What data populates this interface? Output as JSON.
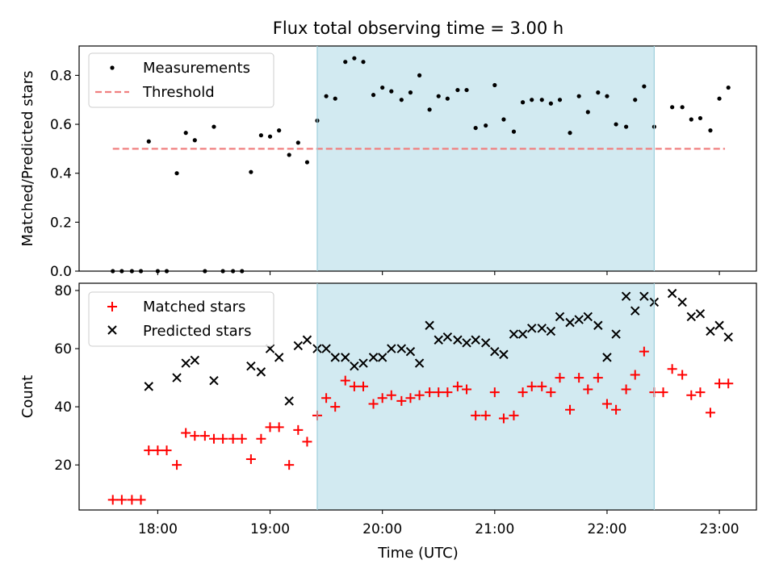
{
  "figure": {
    "title": "Flux total observing time = 3.00 h",
    "xlabel": "Time (UTC)",
    "x_tick_labels": [
      "18:00",
      "19:00",
      "20:00",
      "21:00",
      "22:00",
      "23:00"
    ],
    "x_ticks_hours": [
      18,
      19,
      20,
      21,
      22,
      23
    ],
    "xlim_hours": [
      17.3,
      23.33
    ],
    "observing_window_hours": [
      19.42,
      22.42
    ],
    "window_color": "#add8e6"
  },
  "chart_data": [
    {
      "type": "scatter",
      "ylabel": "Matched/Predicted stars",
      "ylim": [
        0,
        0.92
      ],
      "y_tick_labels": [
        "0.0",
        "0.2",
        "0.4",
        "0.6",
        "0.8"
      ],
      "y_ticks": [
        0,
        0.2,
        0.4,
        0.6,
        0.8
      ],
      "legend_position": "upper-left",
      "threshold": {
        "name": "Threshold",
        "value": 0.5,
        "x_range": [
          17.6,
          23.05
        ],
        "color": "#f08080"
      },
      "series": [
        {
          "name": "Measurements",
          "color": "#000000",
          "marker": "dot",
          "x": [
            17.6,
            17.68,
            17.77,
            17.85,
            17.92,
            18.0,
            18.08,
            18.17,
            18.25,
            18.33,
            18.42,
            18.5,
            18.58,
            18.67,
            18.75,
            18.83,
            18.92,
            19.0,
            19.08,
            19.17,
            19.25,
            19.33,
            19.42,
            19.5,
            19.58,
            19.67,
            19.75,
            19.83,
            19.92,
            20.0,
            20.08,
            20.17,
            20.25,
            20.33,
            20.42,
            20.5,
            20.58,
            20.67,
            20.75,
            20.83,
            20.92,
            21.0,
            21.08,
            21.17,
            21.25,
            21.33,
            21.42,
            21.5,
            21.58,
            21.67,
            21.75,
            21.83,
            21.92,
            22.0,
            22.08,
            22.17,
            22.25,
            22.33,
            22.42,
            22.58,
            22.67,
            22.75,
            22.83,
            22.92,
            23.0,
            23.08
          ],
          "y": [
            0.0,
            0.0,
            0.0,
            0.0,
            0.53,
            0.0,
            0.0,
            0.4,
            0.565,
            0.535,
            0.0,
            0.59,
            0.0,
            0.0,
            0.0,
            0.405,
            0.555,
            0.55,
            0.575,
            0.475,
            0.525,
            0.445,
            0.615,
            0.715,
            0.705,
            0.855,
            0.87,
            0.855,
            0.72,
            0.75,
            0.735,
            0.7,
            0.73,
            0.8,
            0.66,
            0.715,
            0.705,
            0.74,
            0.74,
            0.585,
            0.595,
            0.76,
            0.62,
            0.57,
            0.69,
            0.7,
            0.7,
            0.685,
            0.7,
            0.565,
            0.715,
            0.65,
            0.73,
            0.715,
            0.6,
            0.59,
            0.7,
            0.755,
            0.59,
            0.67,
            0.67,
            0.62,
            0.625,
            0.575,
            0.705,
            0.75
          ]
        }
      ]
    },
    {
      "type": "scatter",
      "ylabel": "Count",
      "ylim": [
        4.5,
        82.5
      ],
      "y_tick_labels": [
        "20",
        "40",
        "60",
        "80"
      ],
      "y_ticks": [
        20,
        40,
        60,
        80
      ],
      "legend_position": "upper-left",
      "series": [
        {
          "name": "Matched stars",
          "color": "#ff0000",
          "marker": "plus",
          "x": [
            17.6,
            17.68,
            17.77,
            17.85,
            17.92,
            18.0,
            18.08,
            18.17,
            18.25,
            18.33,
            18.42,
            18.5,
            18.58,
            18.67,
            18.75,
            18.83,
            18.92,
            19.0,
            19.08,
            19.17,
            19.25,
            19.33,
            19.42,
            19.5,
            19.58,
            19.67,
            19.75,
            19.83,
            19.92,
            20.0,
            20.08,
            20.17,
            20.25,
            20.33,
            20.42,
            20.5,
            20.58,
            20.67,
            20.75,
            20.83,
            20.92,
            21.0,
            21.08,
            21.17,
            21.25,
            21.33,
            21.42,
            21.5,
            21.58,
            21.67,
            21.75,
            21.83,
            21.92,
            22.0,
            22.08,
            22.17,
            22.25,
            22.33,
            22.42,
            22.5,
            22.58,
            22.67,
            22.75,
            22.83,
            22.92,
            23.0,
            23.08
          ],
          "y": [
            8,
            8,
            8,
            8,
            25,
            25,
            25,
            20,
            31,
            30,
            30,
            29,
            29,
            29,
            29,
            22,
            29,
            33,
            33,
            20,
            32,
            28,
            37,
            43,
            40,
            49,
            47,
            47,
            41,
            43,
            44,
            42,
            43,
            44,
            45,
            45,
            45,
            47,
            46,
            37,
            37,
            45,
            36,
            37,
            45,
            47,
            47,
            45,
            50,
            39,
            50,
            46,
            50,
            41,
            39,
            46,
            51,
            59,
            45,
            45,
            53,
            51,
            44,
            45,
            38,
            48,
            48
          ]
        },
        {
          "name": "Predicted stars",
          "color": "#000000",
          "marker": "x",
          "x": [
            17.92,
            18.17,
            18.25,
            18.33,
            18.5,
            18.83,
            18.92,
            19.0,
            19.08,
            19.17,
            19.25,
            19.33,
            19.42,
            19.5,
            19.58,
            19.67,
            19.75,
            19.83,
            19.92,
            20.0,
            20.08,
            20.17,
            20.25,
            20.33,
            20.42,
            20.5,
            20.58,
            20.67,
            20.75,
            20.83,
            20.92,
            21.0,
            21.08,
            21.17,
            21.25,
            21.33,
            21.42,
            21.5,
            21.58,
            21.67,
            21.75,
            21.83,
            21.92,
            22.0,
            22.08,
            22.17,
            22.25,
            22.33,
            22.42,
            22.58,
            22.67,
            22.75,
            22.83,
            22.92,
            23.0,
            23.08
          ],
          "y": [
            47,
            50,
            55,
            56,
            49,
            54,
            52,
            60,
            57,
            42,
            61,
            63,
            60,
            60,
            57,
            57,
            54,
            55,
            57,
            57,
            60,
            60,
            59,
            55,
            68,
            63,
            64,
            63,
            62,
            63,
            62,
            59,
            58,
            65,
            65,
            67,
            67,
            66,
            71,
            69,
            70,
            71,
            68,
            57,
            65,
            78,
            73,
            78,
            76,
            79,
            76,
            71,
            72,
            66,
            68,
            64
          ]
        }
      ]
    }
  ]
}
